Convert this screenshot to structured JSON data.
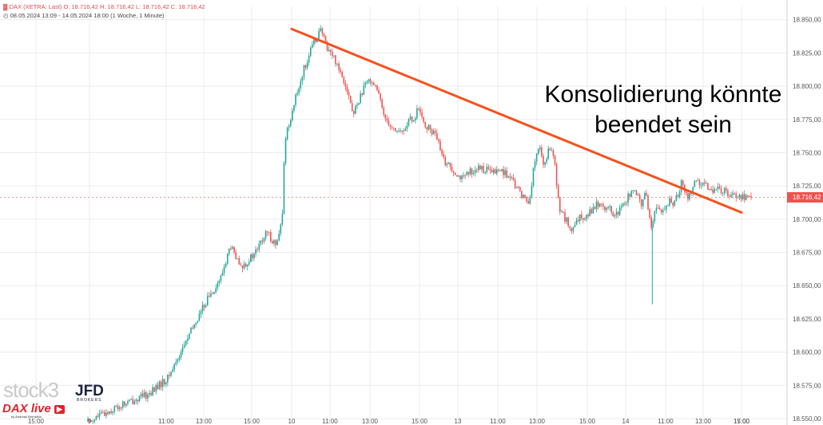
{
  "header": {
    "line1": "DAX (XETRA: Last)  O: 18.716,42  H: 18.716,42  L: 18.716,42  C: 18.716,42",
    "line2": "08.05.2024 13:09 - 14.05.2024 18:00  (1 Woche, 1 Minute)",
    "instrument_icon": "chart-symbol-icon",
    "period_icon": "clock-icon"
  },
  "annotation": {
    "line1": "Konsolidierung könnte",
    "line2": "beendet sein"
  },
  "current_price_label": "18.716,42",
  "branding": {
    "stock3": "stock3",
    "jfd": "JFD",
    "jfd_sub": "BROKERS",
    "daxlive": "DAX live",
    "daxlive_sub": "by Andreas Bernstein"
  },
  "colors": {
    "up": "#26a69a",
    "down": "#ef5350",
    "trendline": "#f4511e",
    "price_badge": "#ef5350",
    "grid": "#ececec"
  },
  "chart_data": {
    "type": "candlestick",
    "title": "",
    "xlabel": "",
    "ylabel": "",
    "ylim": [
      18550,
      18860
    ],
    "y_ticks": [
      18550,
      18575,
      18600,
      18625,
      18650,
      18675,
      18700,
      18725,
      18750,
      18775,
      18800,
      18825,
      18850
    ],
    "y_tick_labels": [
      "18.550,00",
      "18.575,00",
      "18.600,00",
      "18.625,00",
      "18.650,00",
      "18.675,00",
      "18.700,00",
      "18.725,00",
      "18.750,00",
      "18.775,00",
      "18.800,00",
      "18.825,00",
      "18.850,00"
    ],
    "x_tick_labels": [
      "15:00",
      "9",
      "11:00",
      "13:00",
      "15:00",
      "10",
      "11:00",
      "13:00",
      "15:00",
      "13",
      "11:00",
      "13:00",
      "15:00",
      "14",
      "11:00",
      "13:00",
      "15:00",
      "17:00"
    ],
    "grid": true,
    "current_price": 18716.42,
    "trendline": {
      "from": {
        "tick": "11:00",
        "value": 18843
      },
      "to": {
        "tick": "17:00",
        "value": 18705
      }
    },
    "price_path": [
      [
        0.0,
        18548
      ],
      [
        0.05,
        18560
      ],
      [
        0.09,
        18568
      ],
      [
        0.12,
        18580
      ],
      [
        0.15,
        18610
      ],
      [
        0.18,
        18640
      ],
      [
        0.2,
        18655
      ],
      [
        0.215,
        18680
      ],
      [
        0.23,
        18663
      ],
      [
        0.25,
        18673
      ],
      [
        0.27,
        18690
      ],
      [
        0.285,
        18680
      ],
      [
        0.293,
        18700
      ],
      [
        0.297,
        18760
      ],
      [
        0.31,
        18785
      ],
      [
        0.325,
        18812
      ],
      [
        0.34,
        18832
      ],
      [
        0.35,
        18843
      ],
      [
        0.36,
        18830
      ],
      [
        0.375,
        18818
      ],
      [
        0.39,
        18800
      ],
      [
        0.4,
        18778
      ],
      [
        0.41,
        18792
      ],
      [
        0.425,
        18806
      ],
      [
        0.435,
        18800
      ],
      [
        0.445,
        18780
      ],
      [
        0.46,
        18768
      ],
      [
        0.475,
        18765
      ],
      [
        0.485,
        18776
      ],
      [
        0.49,
        18770
      ],
      [
        0.497,
        18785
      ],
      [
        0.503,
        18775
      ],
      [
        0.51,
        18770
      ],
      [
        0.525,
        18763
      ],
      [
        0.535,
        18745
      ],
      [
        0.55,
        18738
      ],
      [
        0.565,
        18730
      ],
      [
        0.58,
        18737
      ],
      [
        0.595,
        18738
      ],
      [
        0.61,
        18735
      ],
      [
        0.625,
        18737
      ],
      [
        0.64,
        18728
      ],
      [
        0.655,
        18718
      ],
      [
        0.665,
        18712
      ],
      [
        0.672,
        18738
      ],
      [
        0.68,
        18755
      ],
      [
        0.688,
        18740
      ],
      [
        0.697,
        18755
      ],
      [
        0.703,
        18745
      ],
      [
        0.71,
        18710
      ],
      [
        0.72,
        18700
      ],
      [
        0.73,
        18690
      ],
      [
        0.74,
        18700
      ],
      [
        0.755,
        18705
      ],
      [
        0.77,
        18712
      ],
      [
        0.785,
        18708
      ],
      [
        0.795,
        18702
      ],
      [
        0.805,
        18708
      ],
      [
        0.82,
        18722
      ],
      [
        0.835,
        18712
      ],
      [
        0.842,
        18720
      ],
      [
        0.85,
        18690
      ],
      [
        0.855,
        18710
      ],
      [
        0.865,
        18705
      ],
      [
        0.875,
        18713
      ],
      [
        0.885,
        18712
      ],
      [
        0.895,
        18728
      ],
      [
        0.905,
        18715
      ],
      [
        0.915,
        18730
      ],
      [
        0.925,
        18725
      ],
      [
        1.0,
        18716
      ]
    ],
    "spikes": [
      {
        "at": 0.851,
        "low": 18636
      },
      {
        "at": 0.298,
        "low": 18749
      }
    ]
  }
}
